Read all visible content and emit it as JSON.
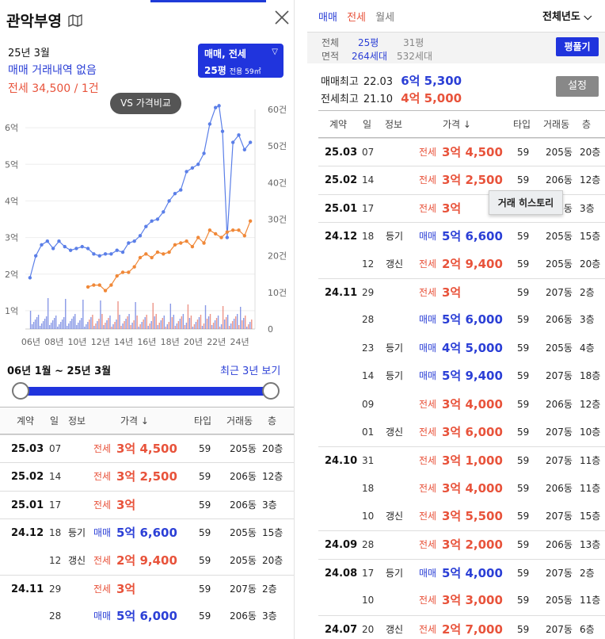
{
  "left": {
    "title": "관악부영",
    "period": "25년 3월",
    "trade_none": "매매 거래내역 없음",
    "jeonse_summary": "전세 34,500 / 1건",
    "type_box": {
      "line1": "매매, 전세",
      "pyeong": "25평",
      "area": "전용 59㎡"
    },
    "vs_button": "VS 가격비교",
    "range_label": "06년 1월 ~ 25년 3월",
    "recent_link": "최근 3년 보기",
    "table": {
      "headers": {
        "date": "계약",
        "day": "일",
        "info": "정보",
        "price": "가격 ↓",
        "type": "타입",
        "dong": "거래동",
        "floor": "층"
      },
      "rows": [
        {
          "date": "25.03",
          "day": "07",
          "info": "",
          "kind": "전세",
          "price": "3억 4,500",
          "type": "59",
          "dong": "205동",
          "floor": "20층"
        },
        {
          "date": "25.02",
          "day": "14",
          "info": "",
          "kind": "전세",
          "price": "3억 2,500",
          "type": "59",
          "dong": "206동",
          "floor": "12층"
        },
        {
          "date": "25.01",
          "day": "17",
          "info": "",
          "kind": "전세",
          "price": "3억",
          "type": "59",
          "dong": "206동",
          "floor": "3층"
        },
        {
          "date": "24.12",
          "day": "18",
          "info": "등기",
          "kind": "매매",
          "price": "5억 6,600",
          "type": "59",
          "dong": "205동",
          "floor": "15층"
        },
        {
          "date": "",
          "day": "12",
          "info": "갱신",
          "kind": "전세",
          "price": "2억 9,400",
          "type": "59",
          "dong": "205동",
          "floor": "20층"
        },
        {
          "date": "24.11",
          "day": "29",
          "info": "",
          "kind": "전세",
          "price": "3억",
          "type": "59",
          "dong": "207동",
          "floor": "2층"
        },
        {
          "date": "",
          "day": "28",
          "info": "",
          "kind": "매매",
          "price": "5억 6,000",
          "type": "59",
          "dong": "206동",
          "floor": "3층"
        }
      ]
    }
  },
  "chart_data": {
    "type": "line",
    "x_ticks": [
      "06년",
      "08년",
      "10년",
      "12년",
      "14년",
      "16년",
      "18년",
      "20년",
      "22년",
      "24년"
    ],
    "y_left_ticks": [
      "1억",
      "2억",
      "3억",
      "4억",
      "5억",
      "6억"
    ],
    "y_right_ticks": [
      "0",
      "10건",
      "20건",
      "30건",
      "40건",
      "50건",
      "60건"
    ],
    "ylim_left": [
      0.5,
      6.5
    ],
    "ylim_right": [
      0,
      60
    ],
    "series": [
      {
        "kind": "trade",
        "color": "#5b7fe8",
        "x": [
          2006.0,
          2006.5,
          2007.0,
          2007.5,
          2008.0,
          2008.5,
          2009.0,
          2009.5,
          2010.0,
          2010.5,
          2011.0,
          2011.5,
          2012.0,
          2012.5,
          2013.0,
          2013.5,
          2014.0,
          2014.5,
          2015.0,
          2015.5,
          2016.0,
          2016.5,
          2017.0,
          2017.5,
          2018.0,
          2018.5,
          2019.0,
          2019.5,
          2020.0,
          2020.5,
          2021.0,
          2021.5,
          2022.0,
          2022.3,
          2022.6,
          2023.0,
          2023.5,
          2024.0,
          2024.5,
          2025.0
        ],
        "y": [
          1.9,
          2.5,
          2.8,
          2.9,
          2.7,
          2.9,
          2.75,
          2.65,
          2.7,
          2.75,
          2.7,
          2.55,
          2.5,
          2.55,
          2.55,
          2.65,
          2.6,
          2.85,
          2.9,
          3.05,
          3.3,
          3.45,
          3.5,
          3.7,
          4.0,
          4.2,
          4.3,
          4.8,
          4.9,
          5.0,
          5.3,
          6.1,
          6.55,
          6.6,
          5.9,
          3.0,
          5.6,
          5.8,
          5.4,
          5.6
        ]
      },
      {
        "kind": "jeonse",
        "color": "#f08838",
        "x": [
          2011.0,
          2011.5,
          2012.0,
          2012.5,
          2013.0,
          2013.5,
          2014.0,
          2014.5,
          2015.0,
          2015.5,
          2016.0,
          2016.5,
          2017.0,
          2017.5,
          2018.0,
          2018.5,
          2019.0,
          2019.5,
          2020.0,
          2020.5,
          2021.0,
          2021.5,
          2022.0,
          2022.5,
          2023.0,
          2023.5,
          2024.0,
          2024.5,
          2025.0
        ],
        "y": [
          1.65,
          1.7,
          1.7,
          1.55,
          1.7,
          1.95,
          2.05,
          2.05,
          2.2,
          2.45,
          2.55,
          2.45,
          2.6,
          2.55,
          2.6,
          2.8,
          2.85,
          2.9,
          2.75,
          3.0,
          2.85,
          3.2,
          3.1,
          3.0,
          3.15,
          3.2,
          3.2,
          3.05,
          3.45
        ]
      }
    ]
  },
  "right": {
    "tabs": [
      "매매",
      "전세",
      "월세"
    ],
    "year_select": "전체년도",
    "info": {
      "lbl_all": "전체",
      "lbl_area": "면적",
      "pyeong_a": "25평",
      "units_a": "264세대",
      "pyeong_b": "31평",
      "units_b": "532세대",
      "pyeong_btn": "평풀기"
    },
    "max_trade_label": "매매최고",
    "max_trade_date": "22.03",
    "max_trade_price": "6억 5,300",
    "max_jeonse_label": "전세최고",
    "max_jeonse_date": "21.10",
    "max_jeonse_price": "4억 5,000",
    "setting_btn": "설정",
    "tooltip": "거래 히스토리",
    "table": {
      "headers": {
        "date": "계약",
        "day": "일",
        "info": "정보",
        "price": "가격 ↓",
        "type": "타입",
        "dong": "거래동",
        "floor": "층"
      },
      "rows": [
        {
          "date": "25.03",
          "day": "07",
          "info": "",
          "kind": "전세",
          "price": "3억 4,500",
          "type": "59",
          "dong": "205동",
          "floor": "20층"
        },
        {
          "date": "25.02",
          "day": "14",
          "info": "",
          "kind": "전세",
          "price": "3억 2,500",
          "type": "59",
          "dong": "206동",
          "floor": "12층"
        },
        {
          "date": "25.01",
          "day": "17",
          "info": "",
          "kind": "전세",
          "price": "3억",
          "type": "59",
          "dong": "206동",
          "floor": "3층"
        },
        {
          "date": "24.12",
          "day": "18",
          "info": "등기",
          "kind": "매매",
          "price": "5억 6,600",
          "type": "59",
          "dong": "205동",
          "floor": "15층"
        },
        {
          "date": "",
          "day": "12",
          "info": "갱신",
          "kind": "전세",
          "price": "2억 9,400",
          "type": "59",
          "dong": "205동",
          "floor": "20층"
        },
        {
          "date": "24.11",
          "day": "29",
          "info": "",
          "kind": "전세",
          "price": "3억",
          "type": "59",
          "dong": "207동",
          "floor": "2층"
        },
        {
          "date": "",
          "day": "28",
          "info": "",
          "kind": "매매",
          "price": "5억 6,000",
          "type": "59",
          "dong": "206동",
          "floor": "3층"
        },
        {
          "date": "",
          "day": "23",
          "info": "등기",
          "kind": "매매",
          "price": "4억 5,000",
          "type": "59",
          "dong": "205동",
          "floor": "4층"
        },
        {
          "date": "",
          "day": "14",
          "info": "등기",
          "kind": "매매",
          "price": "5억 9,400",
          "type": "59",
          "dong": "207동",
          "floor": "18층"
        },
        {
          "date": "",
          "day": "09",
          "info": "",
          "kind": "전세",
          "price": "3억 4,000",
          "type": "59",
          "dong": "206동",
          "floor": "12층"
        },
        {
          "date": "",
          "day": "01",
          "info": "갱신",
          "kind": "전세",
          "price": "3억 6,000",
          "type": "59",
          "dong": "207동",
          "floor": "10층"
        },
        {
          "date": "24.10",
          "day": "31",
          "info": "",
          "kind": "전세",
          "price": "3억 1,000",
          "type": "59",
          "dong": "207동",
          "floor": "11층"
        },
        {
          "date": "",
          "day": "18",
          "info": "",
          "kind": "전세",
          "price": "3억 4,000",
          "type": "59",
          "dong": "206동",
          "floor": "11층"
        },
        {
          "date": "",
          "day": "10",
          "info": "갱신",
          "kind": "전세",
          "price": "3억 5,500",
          "type": "59",
          "dong": "207동",
          "floor": "15층"
        },
        {
          "date": "24.09",
          "day": "28",
          "info": "",
          "kind": "전세",
          "price": "3억 2,000",
          "type": "59",
          "dong": "206동",
          "floor": "13층"
        },
        {
          "date": "24.08",
          "day": "17",
          "info": "등기",
          "kind": "매매",
          "price": "5억 4,000",
          "type": "59",
          "dong": "207동",
          "floor": "2층"
        },
        {
          "date": "",
          "day": "10",
          "info": "",
          "kind": "전세",
          "price": "3억 3,000",
          "type": "59",
          "dong": "205동",
          "floor": "11층"
        },
        {
          "date": "24.07",
          "day": "20",
          "info": "갱신",
          "kind": "전세",
          "price": "2억 7,000",
          "type": "59",
          "dong": "207동",
          "floor": "6층"
        }
      ]
    }
  }
}
